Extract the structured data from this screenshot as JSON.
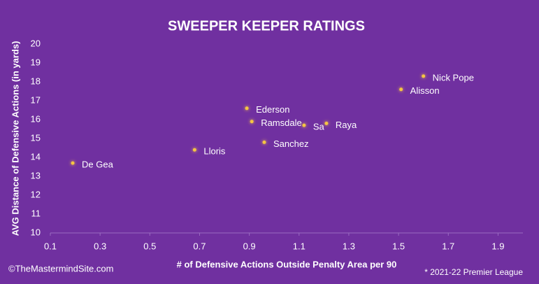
{
  "chart_data": {
    "type": "scatter",
    "title": "SWEEPER KEEPER RATINGS",
    "x_label": "# of Defensive Actions Outside Penalty Area per 90",
    "y_label": "AVG Distance of Defensive Actions (in yards)",
    "labels": [
      "De Gea",
      "Lloris",
      "Ederson",
      "Ramsdale",
      "Sanchez",
      "Sa",
      "Raya",
      "Alisson",
      "Nick Pope"
    ],
    "x": [
      0.19,
      0.68,
      0.89,
      0.91,
      0.96,
      1.12,
      1.21,
      1.51,
      1.6
    ],
    "values": [
      13.7,
      14.4,
      16.6,
      15.9,
      14.8,
      15.7,
      15.8,
      17.6,
      18.3
    ],
    "color": "#f5c542",
    "xlim": [
      0.1,
      2.0
    ],
    "xticks": [
      0.1,
      0.3,
      0.5,
      0.7,
      0.9,
      1.1,
      1.3,
      1.5,
      1.7,
      1.9
    ],
    "ylim": [
      10,
      20
    ],
    "yticks": [
      10,
      11,
      12,
      13,
      14,
      15,
      16,
      17,
      18,
      19,
      20
    ],
    "grid": false,
    "credit": "©TheMastermindSite.com",
    "note": "* 2021-22 Premier League"
  }
}
